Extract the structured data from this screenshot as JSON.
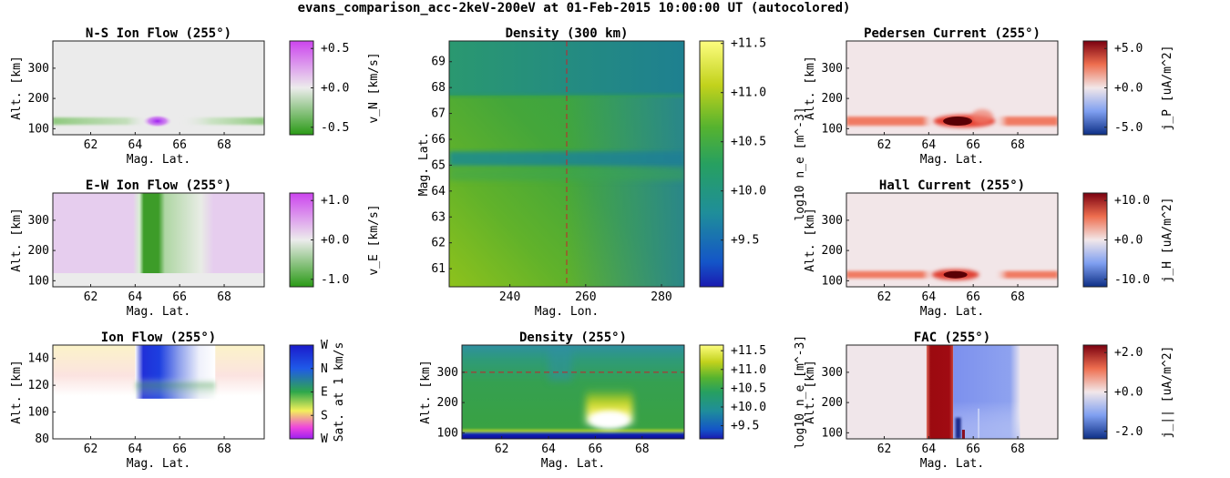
{
  "figure_title": "evans_comparison_acc-2keV-200eV at 01-Feb-2015 10:00:00 UT (autocolored)",
  "chart_data": [
    {
      "id": "ns_ion_flow",
      "type": "heatmap",
      "title": "N-S Ion Flow (255°)",
      "xlabel": "Mag. Lat.",
      "ylabel": "Alt. [km]",
      "x_ticks": [
        "62",
        "64",
        "66",
        "68"
      ],
      "y_ticks": [
        "100",
        "200",
        "300"
      ],
      "xlim": [
        60.3,
        69.8
      ],
      "ylim": [
        80,
        390
      ],
      "colorbar": {
        "label": "v_N [km/s]",
        "ticks": [
          "+0.5",
          "+0.0",
          "-0.5"
        ],
        "colormap": "green-white-purple"
      }
    },
    {
      "id": "ew_ion_flow",
      "type": "heatmap",
      "title": "E-W Ion Flow (255°)",
      "xlabel": "Mag. Lat.",
      "ylabel": "Alt. [km]",
      "x_ticks": [
        "62",
        "64",
        "66",
        "68"
      ],
      "y_ticks": [
        "100",
        "200",
        "300"
      ],
      "xlim": [
        60.3,
        69.8
      ],
      "ylim": [
        80,
        390
      ],
      "colorbar": {
        "label": "v_E [km/s]",
        "ticks": [
          "+1.0",
          "+0.0",
          "-1.0"
        ],
        "colormap": "green-white-purple"
      }
    },
    {
      "id": "ion_flow",
      "type": "heatmap",
      "title": "Ion Flow (255°)",
      "xlabel": "Mag. Lat.",
      "ylabel": "Alt. [km]",
      "x_ticks": [
        "62",
        "64",
        "66",
        "68"
      ],
      "y_ticks": [
        "80",
        "100",
        "120",
        "140"
      ],
      "xlim": [
        60.3,
        69.8
      ],
      "ylim": [
        80,
        150
      ],
      "colorbar": {
        "label": "Sat. at 1 km/s",
        "ticks": [
          "W",
          "N",
          "E",
          "S",
          "W"
        ],
        "colormap": "direction-cyclic"
      }
    },
    {
      "id": "density_300km",
      "type": "heatmap",
      "title": "Density (300 km)",
      "xlabel": "Mag. Lon.",
      "ylabel": "Mag. Lat.",
      "x_ticks": [
        "240",
        "260",
        "280"
      ],
      "y_ticks": [
        "61",
        "62",
        "63",
        "64",
        "65",
        "66",
        "67",
        "68",
        "69"
      ],
      "xlim": [
        224,
        286
      ],
      "ylim": [
        60.3,
        69.8
      ],
      "marker_line": {
        "orientation": "vertical",
        "value": 255
      },
      "colorbar": {
        "label": "log10 n_e [m^-3]",
        "ticks": [
          "+11.5",
          "+11.0",
          "+10.5",
          "+10.0",
          "+9.5"
        ],
        "colormap": "parula"
      }
    },
    {
      "id": "density_255",
      "type": "heatmap",
      "title": "Density (255°)",
      "xlabel": "Mag. Lat.",
      "ylabel": "Alt. [km]",
      "x_ticks": [
        "62",
        "64",
        "66",
        "68"
      ],
      "y_ticks": [
        "100",
        "200",
        "300"
      ],
      "xlim": [
        60.3,
        69.8
      ],
      "ylim": [
        80,
        390
      ],
      "marker_line": {
        "orientation": "horizontal",
        "value": 300
      },
      "colorbar": {
        "label": "log10 n_e [m^-3]",
        "ticks": [
          "+11.5",
          "+11.0",
          "+10.5",
          "+10.0",
          "+9.5"
        ],
        "colormap": "parula"
      }
    },
    {
      "id": "pedersen",
      "type": "heatmap",
      "title": "Pedersen Current (255°)",
      "xlabel": "Mag. Lat.",
      "ylabel": "Alt. [km]",
      "x_ticks": [
        "62",
        "64",
        "66",
        "68"
      ],
      "y_ticks": [
        "100",
        "200",
        "300"
      ],
      "xlim": [
        60.3,
        69.8
      ],
      "ylim": [
        80,
        390
      ],
      "colorbar": {
        "label": "j_P [uA/m^2]",
        "ticks": [
          "+5.0",
          "+0.0",
          "-5.0"
        ],
        "colormap": "blue-white-red"
      }
    },
    {
      "id": "hall",
      "type": "heatmap",
      "title": "Hall Current (255°)",
      "xlabel": "Mag. Lat.",
      "ylabel": "Alt. [km]",
      "x_ticks": [
        "62",
        "64",
        "66",
        "68"
      ],
      "y_ticks": [
        "100",
        "200",
        "300"
      ],
      "xlim": [
        60.3,
        69.8
      ],
      "ylim": [
        80,
        390
      ],
      "colorbar": {
        "label": "j_H [uA/m^2]",
        "ticks": [
          "+10.0",
          "+0.0",
          "-10.0"
        ],
        "colormap": "blue-white-red"
      }
    },
    {
      "id": "fac",
      "type": "heatmap",
      "title": "FAC (255°)",
      "xlabel": "Mag. Lat.",
      "ylabel": "Alt. [km]",
      "x_ticks": [
        "62",
        "64",
        "66",
        "68"
      ],
      "y_ticks": [
        "100",
        "200",
        "300"
      ],
      "xlim": [
        60.3,
        69.8
      ],
      "ylim": [
        80,
        390
      ],
      "colorbar": {
        "label": "j_|| [uA/m^2]",
        "ticks": [
          "+2.0",
          "+0.0",
          "-2.0"
        ],
        "colormap": "blue-white-red"
      }
    }
  ]
}
